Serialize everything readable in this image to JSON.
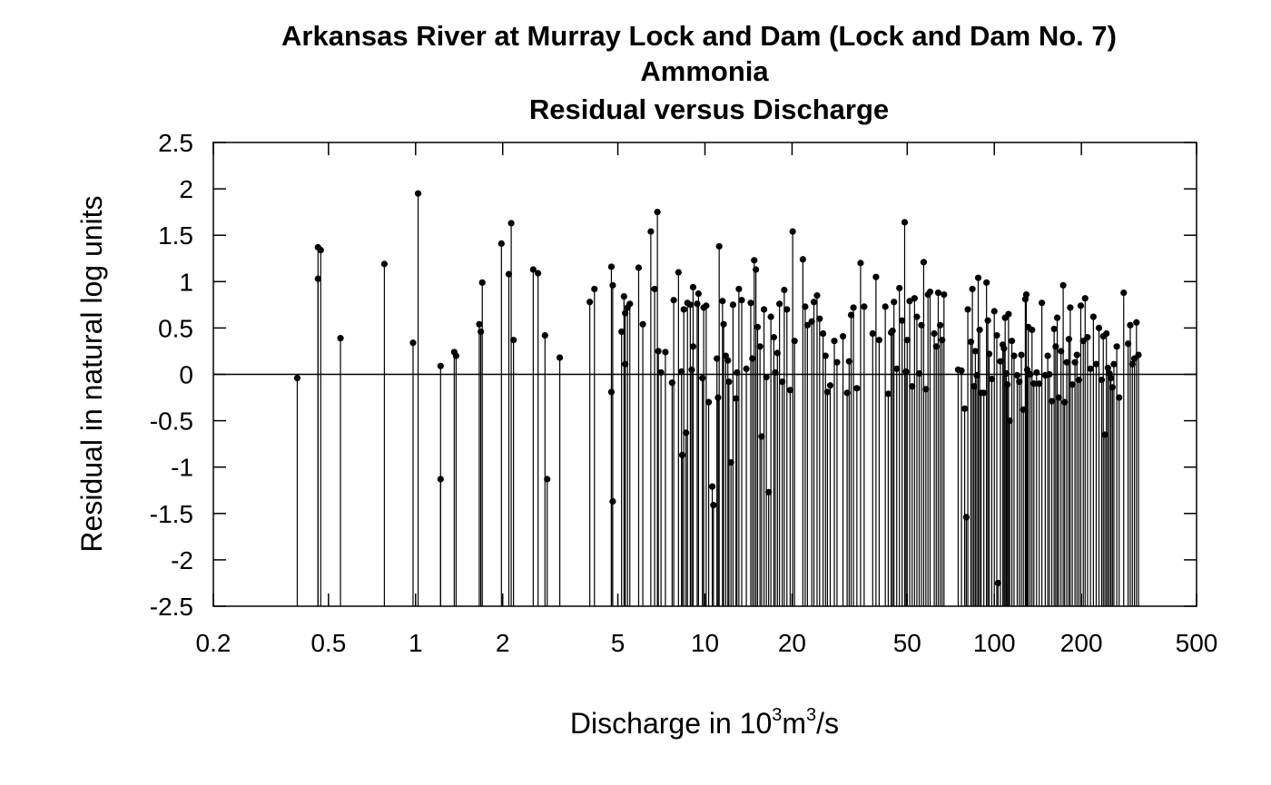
{
  "chart_data": {
    "type": "scatter",
    "title_lines": [
      "Arkansas River at Murray Lock and Dam (Lock and Dam No. 7)",
      "Ammonia",
      "Residual versus Discharge"
    ],
    "xlabel": {
      "prefix": "Discharge in 10",
      "sup1": "3",
      "mid": "m",
      "sup2": "3",
      "suffix": "/s"
    },
    "ylabel": "Residual in natural log units",
    "x_scale": "log",
    "xlim": [
      0.2,
      500
    ],
    "ylim": [
      -2.5,
      2.5
    ],
    "x_ticks": [
      {
        "value": 0.2,
        "label": "0.2"
      },
      {
        "value": 0.5,
        "label": "0.5"
      },
      {
        "value": 1,
        "label": "1"
      },
      {
        "value": 2,
        "label": "2"
      },
      {
        "value": 5,
        "label": "5"
      },
      {
        "value": 10,
        "label": "10"
      },
      {
        "value": 20,
        "label": "20"
      },
      {
        "value": 50,
        "label": "50"
      },
      {
        "value": 100,
        "label": "100"
      },
      {
        "value": 200,
        "label": "200"
      },
      {
        "value": 500,
        "label": "500"
      }
    ],
    "y_ticks": [
      {
        "value": 2.5,
        "label": "2.5"
      },
      {
        "value": 2,
        "label": "2"
      },
      {
        "value": 1.5,
        "label": "1.5"
      },
      {
        "value": 1,
        "label": "1"
      },
      {
        "value": 0.5,
        "label": "0.5"
      },
      {
        "value": 0,
        "label": "0"
      },
      {
        "value": -0.5,
        "label": "-0.5"
      },
      {
        "value": -1,
        "label": "-1"
      },
      {
        "value": -1.5,
        "label": "-1.5"
      },
      {
        "value": -2,
        "label": "-2"
      },
      {
        "value": -2.5,
        "label": "-2.5"
      }
    ],
    "zero_line": true,
    "marker_color": "#000000",
    "points": [
      [
        0.39,
        -0.04
      ],
      [
        0.46,
        1.03
      ],
      [
        0.46,
        1.37
      ],
      [
        0.47,
        1.34
      ],
      [
        0.55,
        0.39
      ],
      [
        0.78,
        1.19
      ],
      [
        0.98,
        0.34
      ],
      [
        1.02,
        1.95
      ],
      [
        1.22,
        0.09
      ],
      [
        1.22,
        -1.13
      ],
      [
        1.36,
        0.24
      ],
      [
        1.38,
        0.2
      ],
      [
        1.66,
        0.54
      ],
      [
        1.68,
        0.46
      ],
      [
        1.7,
        0.99
      ],
      [
        1.98,
        1.41
      ],
      [
        2.1,
        1.08
      ],
      [
        2.14,
        1.63
      ],
      [
        2.18,
        0.37
      ],
      [
        2.55,
        1.13
      ],
      [
        2.65,
        1.09
      ],
      [
        2.8,
        0.42
      ],
      [
        2.85,
        -1.13
      ],
      [
        3.15,
        0.18
      ],
      [
        4.0,
        0.78
      ],
      [
        4.15,
        0.92
      ],
      [
        4.75,
        -0.19
      ],
      [
        4.75,
        1.16
      ],
      [
        4.8,
        0.96
      ],
      [
        4.8,
        -1.37
      ],
      [
        5.15,
        0.46
      ],
      [
        5.25,
        0.84
      ],
      [
        5.3,
        0.11
      ],
      [
        5.3,
        0.66
      ],
      [
        5.4,
        0.72
      ],
      [
        5.5,
        0.76
      ],
      [
        5.9,
        1.15
      ],
      [
        6.1,
        0.54
      ],
      [
        6.5,
        1.54
      ],
      [
        6.7,
        0.92
      ],
      [
        6.85,
        1.75
      ],
      [
        6.9,
        0.25
      ],
      [
        7.05,
        0.02
      ],
      [
        7.3,
        0.24
      ],
      [
        7.7,
        -0.09
      ],
      [
        7.8,
        0.8
      ],
      [
        8.1,
        1.1
      ],
      [
        8.3,
        0.03
      ],
      [
        8.35,
        -0.87
      ],
      [
        8.45,
        0.7
      ],
      [
        8.6,
        -0.63
      ],
      [
        8.7,
        0.77
      ],
      [
        8.9,
        0.75
      ],
      [
        9.1,
        0.3
      ],
      [
        9.0,
        0.05
      ],
      [
        9.1,
        0.94
      ],
      [
        9.4,
        0.76
      ],
      [
        9.5,
        0.87
      ],
      [
        9.8,
        -0.04
      ],
      [
        9.9,
        0.72
      ],
      [
        10.1,
        0.74
      ],
      [
        10.3,
        -0.3
      ],
      [
        10.6,
        -1.21
      ],
      [
        10.7,
        -1.41
      ],
      [
        11.0,
        0.17
      ],
      [
        11.1,
        -0.25
      ],
      [
        11.2,
        1.38
      ],
      [
        11.5,
        0.79
      ],
      [
        11.6,
        0.54
      ],
      [
        11.8,
        0.2
      ],
      [
        12.0,
        0.15
      ],
      [
        12.1,
        -0.08
      ],
      [
        12.3,
        -0.95
      ],
      [
        12.5,
        0.75
      ],
      [
        12.8,
        -0.26
      ],
      [
        12.9,
        0.02
      ],
      [
        13.1,
        0.92
      ],
      [
        13.4,
        0.8
      ],
      [
        13.9,
        0.06
      ],
      [
        14.4,
        0.77
      ],
      [
        14.6,
        0.17
      ],
      [
        14.8,
        1.23
      ],
      [
        15.0,
        1.13
      ],
      [
        15.2,
        0.51
      ],
      [
        15.5,
        0.3
      ],
      [
        15.7,
        -0.67
      ],
      [
        16.0,
        0.7
      ],
      [
        16.3,
        -0.03
      ],
      [
        16.6,
        -1.27
      ],
      [
        16.9,
        0.62
      ],
      [
        17.3,
        0.4
      ],
      [
        17.5,
        0.02
      ],
      [
        17.8,
        0.23
      ],
      [
        18.1,
        0.76
      ],
      [
        18.5,
        -0.08
      ],
      [
        18.8,
        0.91
      ],
      [
        19.2,
        0.7
      ],
      [
        19.7,
        -0.17
      ],
      [
        20.1,
        1.54
      ],
      [
        20.4,
        0.36
      ],
      [
        21.8,
        1.24
      ],
      [
        22.2,
        0.73
      ],
      [
        22.6,
        0.53
      ],
      [
        23.4,
        0.57
      ],
      [
        23.8,
        0.78
      ],
      [
        24.4,
        0.85
      ],
      [
        24.9,
        0.6
      ],
      [
        25.6,
        0.44
      ],
      [
        26.1,
        0.2
      ],
      [
        26.5,
        -0.19
      ],
      [
        27.1,
        -0.12
      ],
      [
        28.0,
        0.36
      ],
      [
        28.6,
        0.13
      ],
      [
        30.0,
        0.41
      ],
      [
        31.0,
        -0.2
      ],
      [
        31.5,
        0.14
      ],
      [
        32.0,
        0.64
      ],
      [
        32.6,
        0.72
      ],
      [
        33.5,
        -0.15
      ],
      [
        34.5,
        1.2
      ],
      [
        35.5,
        0.73
      ],
      [
        38.0,
        0.44
      ],
      [
        39.0,
        1.05
      ],
      [
        40.0,
        0.37
      ],
      [
        42.0,
        0.73
      ],
      [
        43.0,
        -0.21
      ],
      [
        44.0,
        0.45
      ],
      [
        44.5,
        0.47
      ],
      [
        45.0,
        0.78
      ],
      [
        46.0,
        0.06
      ],
      [
        47.0,
        0.93
      ],
      [
        48.0,
        0.58
      ],
      [
        49.0,
        1.64
      ],
      [
        49.5,
        0.03
      ],
      [
        50.0,
        0.37
      ],
      [
        51.0,
        0.79
      ],
      [
        52.0,
        -0.13
      ],
      [
        53.0,
        0.82
      ],
      [
        54.0,
        0.62
      ],
      [
        55.0,
        0.01
      ],
      [
        56.0,
        0.53
      ],
      [
        57.0,
        1.21
      ],
      [
        58.0,
        -0.16
      ],
      [
        59.0,
        0.86
      ],
      [
        60.0,
        0.89
      ],
      [
        62.0,
        0.44
      ],
      [
        63.0,
        0.3
      ],
      [
        64.0,
        0.88
      ],
      [
        65.0,
        0.53
      ],
      [
        66.0,
        0.37
      ],
      [
        67.0,
        0.86
      ],
      [
        75.0,
        0.05
      ],
      [
        77.0,
        0.04
      ],
      [
        79.0,
        -0.37
      ],
      [
        80.0,
        -1.54
      ],
      [
        81.0,
        0.7
      ],
      [
        83.0,
        0.35
      ],
      [
        84.0,
        0.92
      ],
      [
        85.0,
        -0.13
      ],
      [
        86.0,
        0.25
      ],
      [
        87.0,
        -0.01
      ],
      [
        88.0,
        1.04
      ],
      [
        89.0,
        0.48
      ],
      [
        90.0,
        -0.2
      ],
      [
        92.0,
        -0.2
      ],
      [
        94.0,
        0.99
      ],
      [
        95.0,
        0.58
      ],
      [
        96.0,
        0.22
      ],
      [
        98.0,
        -0.05
      ],
      [
        100.0,
        0.68
      ],
      [
        102.0,
        0.42
      ],
      [
        103.0,
        -2.25
      ],
      [
        105.0,
        0.14
      ],
      [
        107.0,
        0.32
      ],
      [
        108.0,
        0.28
      ],
      [
        109.0,
        0.61
      ],
      [
        110.0,
        0.01
      ],
      [
        111.0,
        -0.11
      ],
      [
        112.0,
        0.65
      ],
      [
        113.0,
        -0.5
      ],
      [
        115.0,
        0.36
      ],
      [
        117.0,
        0.2
      ],
      [
        120.0,
        -0.01
      ],
      [
        122.0,
        -0.08
      ],
      [
        124.0,
        0.21
      ],
      [
        126.0,
        -0.38
      ],
      [
        128.0,
        0.81
      ],
      [
        129.0,
        0.86
      ],
      [
        130.0,
        0.05
      ],
      [
        131.0,
        0.51
      ],
      [
        133.0,
        0.0
      ],
      [
        135.0,
        0.48
      ],
      [
        137.0,
        -0.1
      ],
      [
        140.0,
        0.02
      ],
      [
        143.0,
        -0.1
      ],
      [
        146.0,
        0.77
      ],
      [
        150.0,
        -0.01
      ],
      [
        153.0,
        0.2
      ],
      [
        155.0,
        0.0
      ],
      [
        158.0,
        -0.29
      ],
      [
        161.0,
        0.49
      ],
      [
        163.0,
        0.3
      ],
      [
        165.0,
        0.61
      ],
      [
        167.0,
        -0.25
      ],
      [
        170.0,
        0.25
      ],
      [
        173.0,
        0.96
      ],
      [
        175.0,
        -0.3
      ],
      [
        178.0,
        0.13
      ],
      [
        181.0,
        0.38
      ],
      [
        183.0,
        0.72
      ],
      [
        186.0,
        -0.11
      ],
      [
        190.0,
        0.13
      ],
      [
        193.0,
        0.21
      ],
      [
        196.0,
        -0.06
      ],
      [
        199.0,
        0.74
      ],
      [
        203.0,
        0.36
      ],
      [
        206.0,
        0.82
      ],
      [
        210.0,
        0.4
      ],
      [
        215.0,
        0.06
      ],
      [
        220.0,
        0.62
      ],
      [
        225.0,
        0.11
      ],
      [
        230.0,
        0.5
      ],
      [
        235.0,
        -0.06
      ],
      [
        238.0,
        0.41
      ],
      [
        241.0,
        -0.65
      ],
      [
        244.0,
        0.44
      ],
      [
        247.0,
        0.07
      ],
      [
        250.0,
        0.01
      ],
      [
        253.0,
        -0.04
      ],
      [
        256.0,
        -0.14
      ],
      [
        259.0,
        0.11
      ],
      [
        265.0,
        0.3
      ],
      [
        270.0,
        -0.25
      ],
      [
        280.0,
        0.88
      ],
      [
        290.0,
        0.33
      ],
      [
        295.0,
        0.53
      ],
      [
        300.0,
        0.11
      ],
      [
        305.0,
        0.17
      ],
      [
        310.0,
        0.56
      ],
      [
        315.0,
        0.21
      ]
    ]
  }
}
